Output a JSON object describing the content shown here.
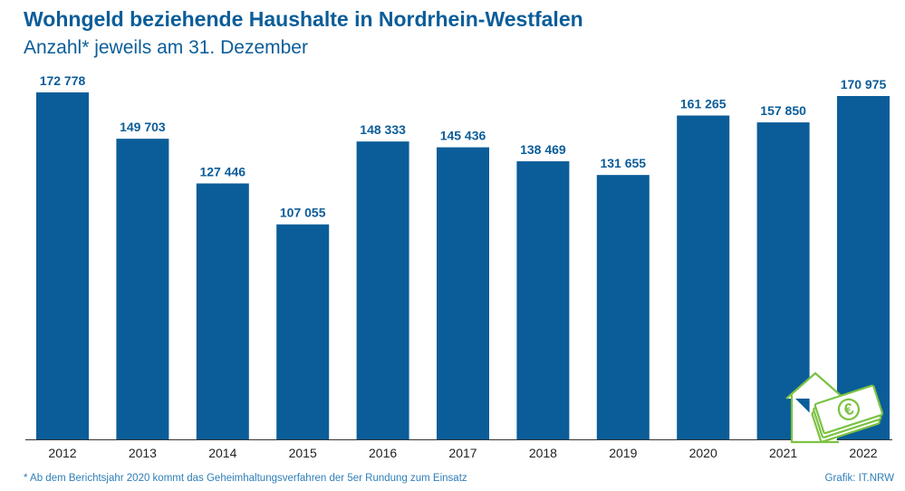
{
  "header": {
    "title": "Wohngeld beziehende Haushalte in Nordrhein-Westfalen",
    "subtitle": "Anzahl* jeweils am 31. Dezember"
  },
  "footer": {
    "footnote": "* Ab dem Berichtsjahr 2020 kommt das Geheimhaltungsverfahren der 5er Rundung zum Einsatz",
    "source": "Grafik: IT.NRW"
  },
  "colors": {
    "bar": "#0b5d99",
    "text": "#0b5d99",
    "axis": "#333333",
    "icon": "#7cc243"
  },
  "icon": {
    "name": "house-money-euro-icon",
    "symbol": "€"
  },
  "chart_data": {
    "type": "bar",
    "title": "Wohngeld beziehende Haushalte in Nordrhein-Westfalen",
    "subtitle": "Anzahl* jeweils am 31. Dezember",
    "categories": [
      "2012",
      "2013",
      "2014",
      "2015",
      "2016",
      "2017",
      "2018",
      "2019",
      "2020",
      "2021",
      "2022"
    ],
    "values": [
      172778,
      149703,
      127446,
      107055,
      148333,
      145436,
      138469,
      131655,
      161265,
      157850,
      170975
    ],
    "value_labels": [
      "172 778",
      "149 703",
      "127 446",
      "107 055",
      "148 333",
      "145 436",
      "138 469",
      "131 655",
      "161 265",
      "157 850",
      "170 975"
    ],
    "ylim": [
      0,
      172778
    ],
    "grid": false,
    "legend": "none"
  }
}
